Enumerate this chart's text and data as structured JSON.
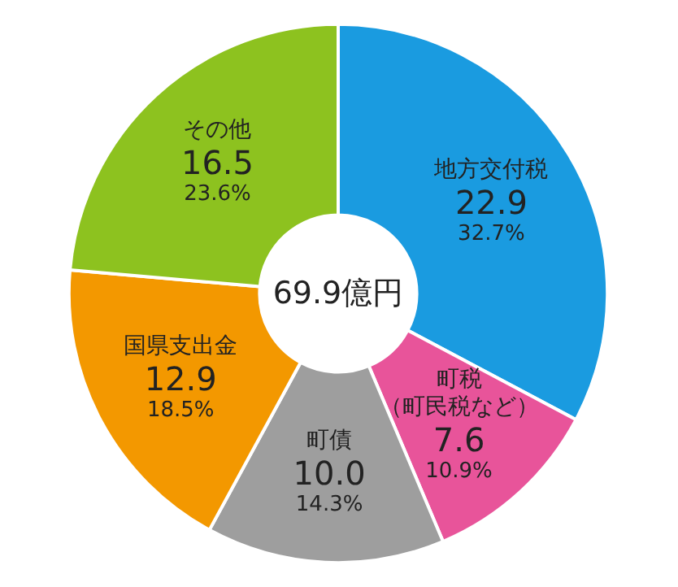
{
  "chart_data": {
    "type": "donut",
    "title": "69.9億円",
    "categories": [
      "地方交付税",
      "町税（町民税など）",
      "町債",
      "国県支出金",
      "その他"
    ],
    "values": [
      22.9,
      7.6,
      10.0,
      12.9,
      16.5
    ],
    "value_labels": [
      "22.9\n32.7%",
      "7.6\n10.9%",
      "10.0\n14.3%",
      "12.9\n18.5%",
      "16.5\n23.6%"
    ],
    "colors": [
      "#1a9be0",
      "#e8549a",
      "#9e9e9e",
      "#f39800",
      "#8dc21f"
    ],
    "legend": false
  }
}
